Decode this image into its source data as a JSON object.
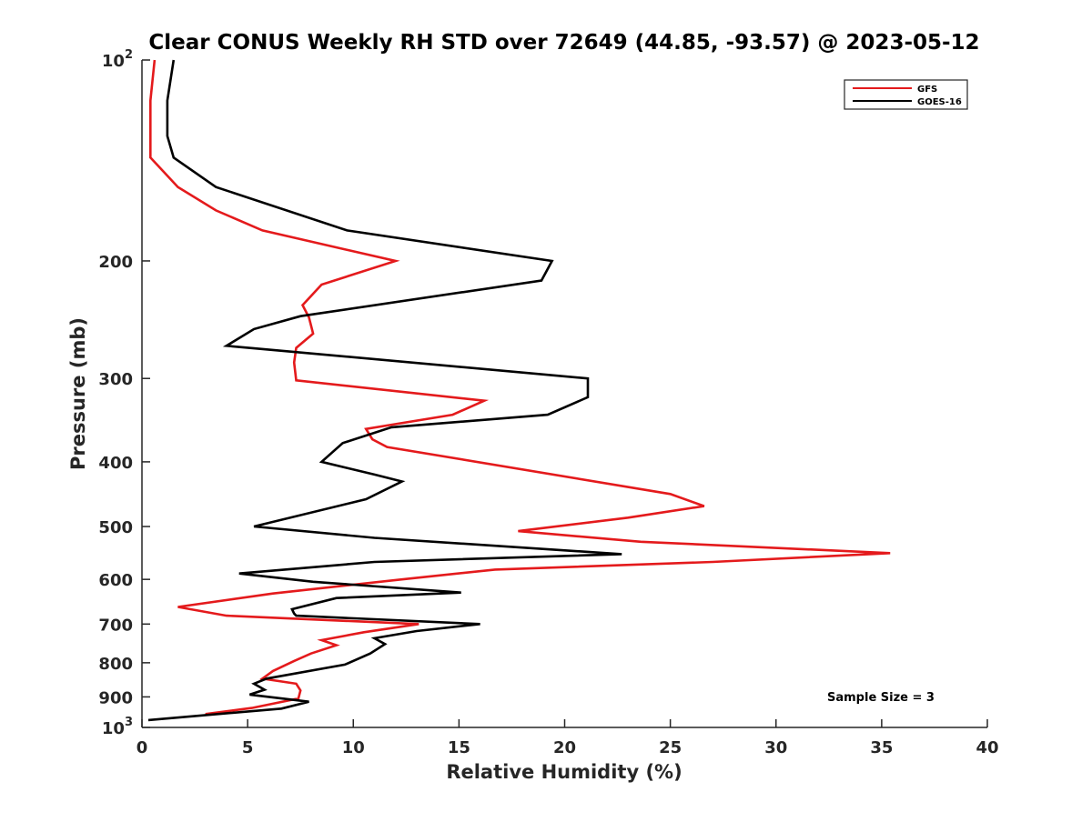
{
  "chart_data": {
    "type": "line",
    "title": "Clear CONUS Weekly RH STD over 72649 (44.85, -93.57) @ 2023-05-12",
    "xlabel": "Relative Humidity (%)",
    "ylabel": "Pressure (mb)",
    "xlim": [
      0,
      40
    ],
    "ylim": [
      100,
      1000
    ],
    "y_scale": "log",
    "y_reversed": true,
    "x_ticks": [
      "0",
      "5",
      "10",
      "15",
      "20",
      "25",
      "30",
      "35",
      "40"
    ],
    "y_ticks": [
      {
        "value": 100,
        "base": "10",
        "exp": "2"
      },
      {
        "value": 200,
        "label": "200"
      },
      {
        "value": 300,
        "label": "300"
      },
      {
        "value": 400,
        "label": "400"
      },
      {
        "value": 500,
        "label": "500"
      },
      {
        "value": 600,
        "label": "600"
      },
      {
        "value": 700,
        "label": "700"
      },
      {
        "value": 800,
        "label": "800"
      },
      {
        "value": 900,
        "label": "900"
      },
      {
        "value": 1000,
        "base": "10",
        "exp": "3"
      }
    ],
    "legend_position": "top-right",
    "grid": false,
    "annotation": "Sample Size = 3",
    "series": [
      {
        "name": "GFS",
        "color": "#e41a1c",
        "points": [
          [
            0.6,
            100
          ],
          [
            0.4,
            115
          ],
          [
            0.4,
            130
          ],
          [
            0.4,
            140
          ],
          [
            1.7,
            155
          ],
          [
            3.5,
            168
          ],
          [
            5.7,
            180
          ],
          [
            12.0,
            200
          ],
          [
            8.5,
            217
          ],
          [
            7.6,
            233
          ],
          [
            7.9,
            243
          ],
          [
            8.1,
            257
          ],
          [
            7.3,
            270
          ],
          [
            7.2,
            284
          ],
          [
            7.3,
            302
          ],
          [
            16.2,
            324
          ],
          [
            14.7,
            340
          ],
          [
            10.6,
            357
          ],
          [
            10.9,
            370
          ],
          [
            11.6,
            380
          ],
          [
            25.0,
            447
          ],
          [
            26.6,
            466
          ],
          [
            23.0,
            485
          ],
          [
            17.8,
            508
          ],
          [
            23.6,
            527
          ],
          [
            35.4,
            548
          ],
          [
            27.0,
            565
          ],
          [
            16.7,
            580
          ],
          [
            12.3,
            600
          ],
          [
            6.2,
            630
          ],
          [
            1.7,
            660
          ],
          [
            4.0,
            680
          ],
          [
            13.1,
            700
          ],
          [
            10.5,
            720
          ],
          [
            8.5,
            740
          ],
          [
            9.2,
            753
          ],
          [
            8.0,
            775
          ],
          [
            7.2,
            795
          ],
          [
            6.2,
            823
          ],
          [
            5.7,
            845
          ],
          [
            7.3,
            860
          ],
          [
            7.5,
            880
          ],
          [
            7.4,
            905
          ],
          [
            5.2,
            935
          ],
          [
            3.0,
            955
          ]
        ]
      },
      {
        "name": "GOES-16",
        "color": "#000000",
        "points": [
          [
            1.5,
            100
          ],
          [
            1.2,
            115
          ],
          [
            1.2,
            130
          ],
          [
            1.5,
            140
          ],
          [
            3.5,
            155
          ],
          [
            9.7,
            180
          ],
          [
            19.4,
            200
          ],
          [
            18.9,
            214
          ],
          [
            7.5,
            242
          ],
          [
            5.3,
            253
          ],
          [
            4.0,
            268
          ],
          [
            21.1,
            300
          ],
          [
            21.1,
            320
          ],
          [
            19.2,
            340
          ],
          [
            11.8,
            355
          ],
          [
            9.5,
            375
          ],
          [
            8.5,
            400
          ],
          [
            11.0,
            418
          ],
          [
            12.3,
            428
          ],
          [
            10.6,
            455
          ],
          [
            5.3,
            500
          ],
          [
            11.0,
            520
          ],
          [
            22.7,
            550
          ],
          [
            11.0,
            565
          ],
          [
            4.6,
            588
          ],
          [
            8.1,
            605
          ],
          [
            15.1,
            628
          ],
          [
            9.2,
            640
          ],
          [
            7.1,
            665
          ],
          [
            7.2,
            675
          ],
          [
            7.3,
            680
          ],
          [
            16.0,
            700
          ],
          [
            13.0,
            717
          ],
          [
            11.0,
            735
          ],
          [
            11.5,
            750
          ],
          [
            10.8,
            775
          ],
          [
            9.6,
            805
          ],
          [
            5.9,
            845
          ],
          [
            5.3,
            860
          ],
          [
            5.8,
            878
          ],
          [
            5.1,
            893
          ],
          [
            7.9,
            915
          ],
          [
            6.6,
            937
          ],
          [
            0.3,
            975
          ]
        ]
      }
    ]
  }
}
